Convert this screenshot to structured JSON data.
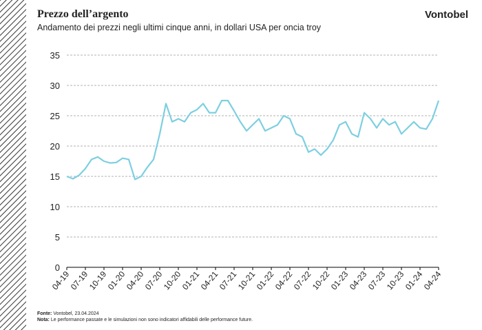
{
  "brand": "Vontobel",
  "footer": {
    "source_label": "Fonte:",
    "source": "Vontobel, 23.04.2024",
    "note_label": "Nota:",
    "note": "Le performance passate e le simulazioni non sono indicatori affidabili delle performance future."
  },
  "chart_data": {
    "type": "line",
    "title": "Prezzo dell’argento",
    "subtitle": "Andamento dei prezzi negli ultimi cinque anni, in dollari USA per oncia troy",
    "categories": [
      "04-19",
      null,
      null,
      "07-19",
      null,
      null,
      "10-19",
      null,
      null,
      "01-20",
      null,
      null,
      "04-20",
      null,
      null,
      "07-20",
      null,
      null,
      "10-20",
      null,
      null,
      "01-21",
      null,
      null,
      "04-21",
      null,
      null,
      "07-21",
      null,
      null,
      "10-21",
      null,
      null,
      "01-22",
      null,
      null,
      "04-22",
      null,
      null,
      "07-22",
      null,
      null,
      "10-22",
      null,
      null,
      "01-23",
      null,
      null,
      "04-23",
      null,
      null,
      "07-23",
      null,
      null,
      "10-23",
      null,
      null,
      "01-24",
      null,
      null,
      "04-24"
    ],
    "series": [
      {
        "name": "Argento",
        "color": "#7dcfe0",
        "values": [
          15,
          14.6,
          15.2,
          16.3,
          17.8,
          18.2,
          17.5,
          17.2,
          17.3,
          18,
          17.8,
          14.5,
          15,
          16.5,
          17.8,
          22,
          27,
          24,
          24.5,
          24,
          25.5,
          26,
          27,
          25.5,
          25.5,
          27.5,
          27.5,
          25.8,
          24,
          22.5,
          23.5,
          24.5,
          22.5,
          23,
          23.5,
          25,
          24.5,
          22,
          21.5,
          19,
          19.5,
          18.5,
          19.5,
          21,
          23.5,
          24,
          22,
          21.5,
          25.5,
          24.5,
          23,
          24.5,
          23.5,
          24,
          22,
          23,
          24,
          23,
          22.8,
          24.5,
          27.5
        ]
      }
    ],
    "ylim": [
      0,
      35
    ],
    "yticks": [
      0,
      5,
      10,
      15,
      20,
      25,
      30,
      35
    ],
    "grid": true
  }
}
